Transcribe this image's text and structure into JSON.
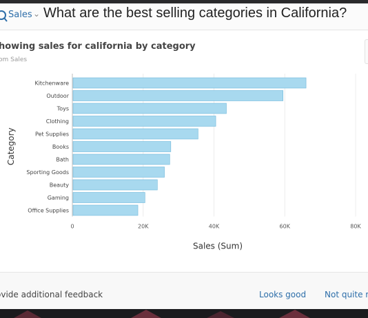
{
  "header": {
    "breadcrumb": "Sales",
    "question": "What are the best selling categories in California?"
  },
  "visual": {
    "title": "howing sales for california by category",
    "subtitle": "om Sales"
  },
  "chart_data": {
    "type": "bar",
    "orientation": "horizontal",
    "categories": [
      "Kitchenware",
      "Outdoor",
      "Toys",
      "Clothing",
      "Pet Supplies",
      "Books",
      "Bath",
      "Sporting Goods",
      "Beauty",
      "Gaming",
      "Office Supplies"
    ],
    "values": [
      66000,
      59500,
      43500,
      40500,
      35500,
      27800,
      27500,
      26000,
      24000,
      20500,
      18500
    ],
    "xlabel": "Sales (Sum)",
    "ylabel": "Category",
    "xlim": [
      0,
      80000
    ],
    "xticks": [
      0,
      20000,
      40000,
      60000,
      80000
    ],
    "xtick_labels": [
      "0",
      "20K",
      "40K",
      "60K",
      "80K"
    ],
    "bar_color": "#a8d9ef",
    "bar_stroke": "#6fb7da",
    "grid": true
  },
  "footer": {
    "feedback_label": "ovide additional feedback",
    "looks_good": "Looks good",
    "not_quite": "Not quite ri"
  },
  "colors": {
    "link": "#2d6ea9",
    "background": "#ffffff"
  }
}
